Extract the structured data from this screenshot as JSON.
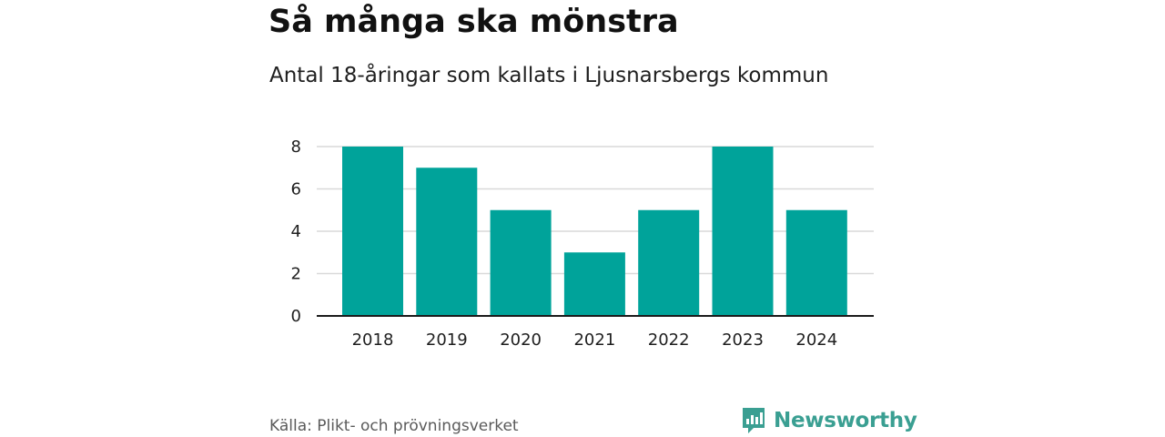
{
  "header": {
    "title": "Så många ska mönstra",
    "subtitle": "Antal 18-åringar som kallats i Ljusnarsbergs kommun"
  },
  "footer": {
    "source": "Källa: Plikt- och prövningsverket",
    "brand": "Newsworthy",
    "brand_icon": "bar-chart-logo-icon"
  },
  "colors": {
    "bar": "#00a39a",
    "grid": "#d9d9d9",
    "axis": "#1a1a1a",
    "brand": "#3a9f92"
  },
  "chart_data": {
    "type": "bar",
    "title": "Så många ska mönstra",
    "subtitle": "Antal 18-åringar som kallats i Ljusnarsbergs kommun",
    "categories": [
      "2018",
      "2019",
      "2020",
      "2021",
      "2022",
      "2023",
      "2024"
    ],
    "values": [
      8,
      7,
      5,
      3,
      5,
      8,
      5
    ],
    "xlabel": "",
    "ylabel": "",
    "ylim": [
      0,
      8
    ],
    "yticks": [
      0,
      2,
      4,
      6,
      8
    ],
    "grid": true,
    "legend": "none"
  }
}
